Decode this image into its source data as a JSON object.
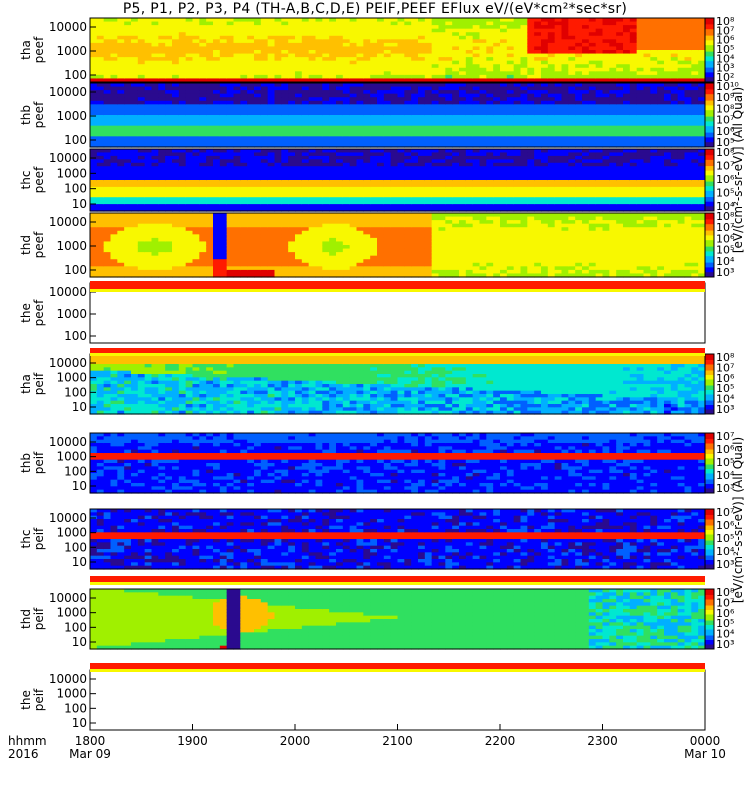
{
  "title": "P5, P1, P2, P3, P4 (TH-A,B,C,D,E) PEIF,PEEF EFlux eV/(eV*cm²*sec*sr)",
  "chart_data": {
    "type": "heatmap",
    "time_axis": {
      "ticks": [
        "1800",
        "1900",
        "2000",
        "2100",
        "2200",
        "2300",
        "0000"
      ],
      "dates": {
        "1800": "Mar 09",
        "0000": "Mar 10"
      },
      "label_top": "hhmm",
      "label_bottom": "2016",
      "range": [
        "2016-03-09 18:00",
        "2016-03-10 00:00"
      ]
    },
    "panels": [
      {
        "name": "tha peef",
        "y_ticks": [
          "10000",
          "1000",
          "100"
        ],
        "has_data": true,
        "cbar_ticks": [
          "10⁸",
          "10⁷",
          "10⁶",
          "10⁵",
          "10⁴",
          "10³",
          "10²"
        ],
        "cbar_exp": [
          8,
          7,
          6,
          5,
          4,
          3,
          2
        ],
        "pattern": "tha_e"
      },
      {
        "name": "thb peef",
        "y_ticks": [
          "10000",
          "1000",
          "100"
        ],
        "has_data": true,
        "cbar_ticks": [
          "10¹⁰",
          "10⁹",
          "10⁸",
          "10⁷",
          "10⁶",
          "10⁵"
        ],
        "cbar_exp": [
          10,
          9,
          8,
          7,
          6,
          5
        ],
        "pattern": "thb_e"
      },
      {
        "name": "thc peef",
        "y_ticks": [
          "10000",
          "1000",
          "100",
          "10"
        ],
        "has_data": true,
        "cbar_ticks": [
          "10⁸",
          "10⁷",
          "10⁶",
          "10⁵",
          "10⁴"
        ],
        "cbar_exp": [
          8,
          7,
          6,
          5,
          4
        ],
        "pattern": "thc_e"
      },
      {
        "name": "thd peef",
        "y_ticks": [
          "10000",
          "1000",
          "100"
        ],
        "has_data": true,
        "cbar_ticks": [
          "10⁸",
          "10⁷",
          "10⁶",
          "10⁵",
          "10⁴",
          "10³"
        ],
        "cbar_exp": [
          8,
          7,
          6,
          5,
          4,
          3
        ],
        "pattern": "thd_e"
      },
      {
        "name": "the peef",
        "y_ticks": [
          "10000",
          "1000",
          "100"
        ],
        "has_data": false,
        "pattern": "empty"
      },
      {
        "name": "tha peif",
        "y_ticks": [
          "10000",
          "1000",
          "100",
          "10"
        ],
        "has_data": true,
        "cbar_ticks": [
          "10⁸",
          "10⁷",
          "10⁶",
          "10⁵",
          "10⁴",
          "10³"
        ],
        "cbar_exp": [
          8,
          7,
          6,
          5,
          4,
          3
        ],
        "pattern": "tha_i"
      },
      {
        "name": "thb peif",
        "y_ticks": [
          "10000",
          "1000",
          "100",
          "10"
        ],
        "has_data": true,
        "cbar_ticks": [
          "10⁷",
          "10⁶",
          "10⁵",
          "10⁴",
          "10³"
        ],
        "cbar_exp": [
          7,
          6,
          5,
          4,
          3
        ],
        "pattern": "thb_i"
      },
      {
        "name": "thc peif",
        "y_ticks": [
          "10000",
          "1000",
          "100",
          "10"
        ],
        "has_data": true,
        "cbar_ticks": [
          "10⁷",
          "10⁶",
          "10⁵",
          "10⁴",
          "10³"
        ],
        "cbar_exp": [
          7,
          6,
          5,
          4,
          3
        ],
        "pattern": "thc_i"
      },
      {
        "name": "thd peif",
        "y_ticks": [
          "10000",
          "1000",
          "100",
          "10"
        ],
        "has_data": true,
        "cbar_ticks": [
          "10⁸",
          "10⁷",
          "10⁶",
          "10⁵",
          "10⁴",
          "10³"
        ],
        "cbar_exp": [
          8,
          7,
          6,
          5,
          4,
          3
        ],
        "pattern": "thd_i"
      },
      {
        "name": "the peif",
        "y_ticks": [
          "10000",
          "1000",
          "100",
          "10"
        ],
        "has_data": false,
        "pattern": "empty"
      }
    ],
    "colorbar_label_electron": "[eV/(cm²-s-sr-eV)] (All Qual)",
    "colorbar_label_ion": "[eV/(cm²-s-sr-eV)] (All Qual)",
    "colorscale": [
      "#2a0a8f",
      "#0000ff",
      "#0060ff",
      "#00b0ff",
      "#00e8d0",
      "#30e060",
      "#a0f000",
      "#f8f800",
      "#ffc000",
      "#ff7000",
      "#ff1a00",
      "#e00000"
    ]
  }
}
